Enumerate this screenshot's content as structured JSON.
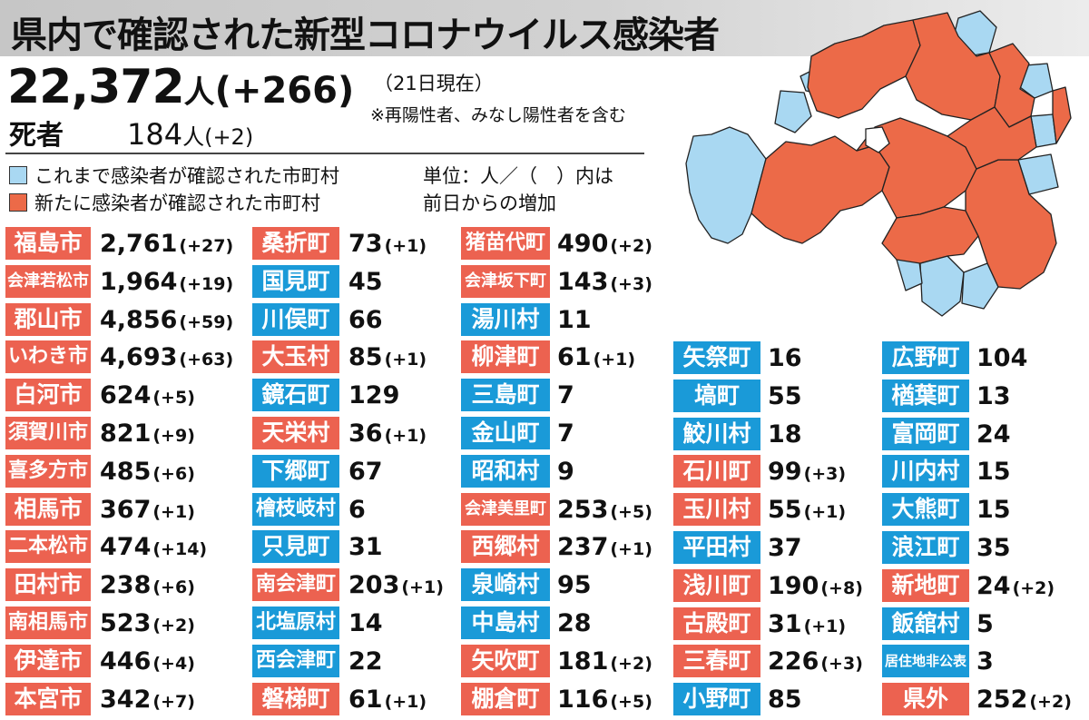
{
  "title": "県内で確認された新型コロナウイルス感染者",
  "total": {
    "number": "22,372",
    "unit": "人",
    "diff": "(+266)"
  },
  "as_of": "（21日現在）",
  "note": "※再陽性者、みなし陽性者を含む",
  "deaths": {
    "label": "死者",
    "number": "184",
    "unit": "人",
    "diff": "(+2)"
  },
  "legend": {
    "existing": {
      "text": "これまで感染者が確認された市町村",
      "color": "#a9d8f2"
    },
    "new": {
      "text": "新たに感染者が確認された市町村",
      "color": "#ec6a48"
    }
  },
  "unit_note": [
    "単位：人／（　）内は",
    "前日からの増加"
  ],
  "colors": {
    "red_label": "#ec6250",
    "blue_label": "#1a9ad8",
    "map_orange": "#ec6a48",
    "map_blue": "#a9d8f2"
  },
  "columns": [
    [
      {
        "name": "福島市",
        "value": "2,761",
        "diff": "(+27)",
        "status": "new"
      },
      {
        "name": "会津若松市",
        "value": "1,964",
        "diff": "(+19)",
        "status": "new"
      },
      {
        "name": "郡山市",
        "value": "4,856",
        "diff": "(+59)",
        "status": "new"
      },
      {
        "name": "いわき市",
        "value": "4,693",
        "diff": "(+63)",
        "status": "new"
      },
      {
        "name": "白河市",
        "value": "624",
        "diff": "(+5)",
        "status": "new"
      },
      {
        "name": "須賀川市",
        "value": "821",
        "diff": "(+9)",
        "status": "new"
      },
      {
        "name": "喜多方市",
        "value": "485",
        "diff": "(+6)",
        "status": "new"
      },
      {
        "name": "相馬市",
        "value": "367",
        "diff": "(+1)",
        "status": "new"
      },
      {
        "name": "二本松市",
        "value": "474",
        "diff": "(+14)",
        "status": "new"
      },
      {
        "name": "田村市",
        "value": "238",
        "diff": "(+6)",
        "status": "new"
      },
      {
        "name": "南相馬市",
        "value": "523",
        "diff": "(+2)",
        "status": "new"
      },
      {
        "name": "伊達市",
        "value": "446",
        "diff": "(+4)",
        "status": "new"
      },
      {
        "name": "本宮市",
        "value": "342",
        "diff": "(+7)",
        "status": "new"
      }
    ],
    [
      {
        "name": "桑折町",
        "value": "73",
        "diff": "(+1)",
        "status": "new"
      },
      {
        "name": "国見町",
        "value": "45",
        "diff": "",
        "status": "existing"
      },
      {
        "name": "川俣町",
        "value": "66",
        "diff": "",
        "status": "existing"
      },
      {
        "name": "大玉村",
        "value": "85",
        "diff": "(+1)",
        "status": "new"
      },
      {
        "name": "鏡石町",
        "value": "129",
        "diff": "",
        "status": "existing"
      },
      {
        "name": "天栄村",
        "value": "36",
        "diff": "(+1)",
        "status": "new"
      },
      {
        "name": "下郷町",
        "value": "67",
        "diff": "",
        "status": "existing"
      },
      {
        "name": "檜枝岐村",
        "value": "6",
        "diff": "",
        "status": "existing"
      },
      {
        "name": "只見町",
        "value": "31",
        "diff": "",
        "status": "existing"
      },
      {
        "name": "南会津町",
        "value": "203",
        "diff": "(+1)",
        "status": "new"
      },
      {
        "name": "北塩原村",
        "value": "14",
        "diff": "",
        "status": "existing"
      },
      {
        "name": "西会津町",
        "value": "22",
        "diff": "",
        "status": "existing"
      },
      {
        "name": "磐梯町",
        "value": "61",
        "diff": "(+1)",
        "status": "new"
      }
    ],
    [
      {
        "name": "猪苗代町",
        "value": "490",
        "diff": "(+2)",
        "status": "new"
      },
      {
        "name": "会津坂下町",
        "value": "143",
        "diff": "(+3)",
        "status": "new"
      },
      {
        "name": "湯川村",
        "value": "11",
        "diff": "",
        "status": "existing"
      },
      {
        "name": "柳津町",
        "value": "61",
        "diff": "(+1)",
        "status": "new"
      },
      {
        "name": "三島町",
        "value": "7",
        "diff": "",
        "status": "existing"
      },
      {
        "name": "金山町",
        "value": "7",
        "diff": "",
        "status": "existing"
      },
      {
        "name": "昭和村",
        "value": "9",
        "diff": "",
        "status": "existing"
      },
      {
        "name": "会津美里町",
        "value": "253",
        "diff": "(+5)",
        "status": "new"
      },
      {
        "name": "西郷村",
        "value": "237",
        "diff": "(+1)",
        "status": "new"
      },
      {
        "name": "泉崎村",
        "value": "95",
        "diff": "",
        "status": "existing"
      },
      {
        "name": "中島村",
        "value": "28",
        "diff": "",
        "status": "existing"
      },
      {
        "name": "矢吹町",
        "value": "181",
        "diff": "(+2)",
        "status": "new"
      },
      {
        "name": "棚倉町",
        "value": "116",
        "diff": "(+5)",
        "status": "new"
      }
    ],
    [
      {
        "name": "矢祭町",
        "value": "16",
        "diff": "",
        "status": "existing"
      },
      {
        "name": "塙町",
        "value": "55",
        "diff": "",
        "status": "existing"
      },
      {
        "name": "鮫川村",
        "value": "18",
        "diff": "",
        "status": "existing"
      },
      {
        "name": "石川町",
        "value": "99",
        "diff": "(+3)",
        "status": "new"
      },
      {
        "name": "玉川村",
        "value": "55",
        "diff": "(+1)",
        "status": "new"
      },
      {
        "name": "平田村",
        "value": "37",
        "diff": "",
        "status": "existing"
      },
      {
        "name": "浅川町",
        "value": "190",
        "diff": "(+8)",
        "status": "new"
      },
      {
        "name": "古殿町",
        "value": "31",
        "diff": "(+1)",
        "status": "new"
      },
      {
        "name": "三春町",
        "value": "226",
        "diff": "(+3)",
        "status": "new"
      },
      {
        "name": "小野町",
        "value": "85",
        "diff": "",
        "status": "existing"
      }
    ],
    [
      {
        "name": "広野町",
        "value": "104",
        "diff": "",
        "status": "existing"
      },
      {
        "name": "楢葉町",
        "value": "13",
        "diff": "",
        "status": "existing"
      },
      {
        "name": "富岡町",
        "value": "24",
        "diff": "",
        "status": "existing"
      },
      {
        "name": "川内村",
        "value": "15",
        "diff": "",
        "status": "existing"
      },
      {
        "name": "大熊町",
        "value": "15",
        "diff": "",
        "status": "existing"
      },
      {
        "name": "浪江町",
        "value": "35",
        "diff": "",
        "status": "existing"
      },
      {
        "name": "新地町",
        "value": "24",
        "diff": "(+2)",
        "status": "new"
      },
      {
        "name": "飯舘村",
        "value": "5",
        "diff": "",
        "status": "existing"
      },
      {
        "name": "居住地非公表",
        "value": "3",
        "diff": "",
        "status": "existing"
      },
      {
        "name": "県外",
        "value": "252",
        "diff": "(+2)",
        "status": "new"
      }
    ]
  ]
}
